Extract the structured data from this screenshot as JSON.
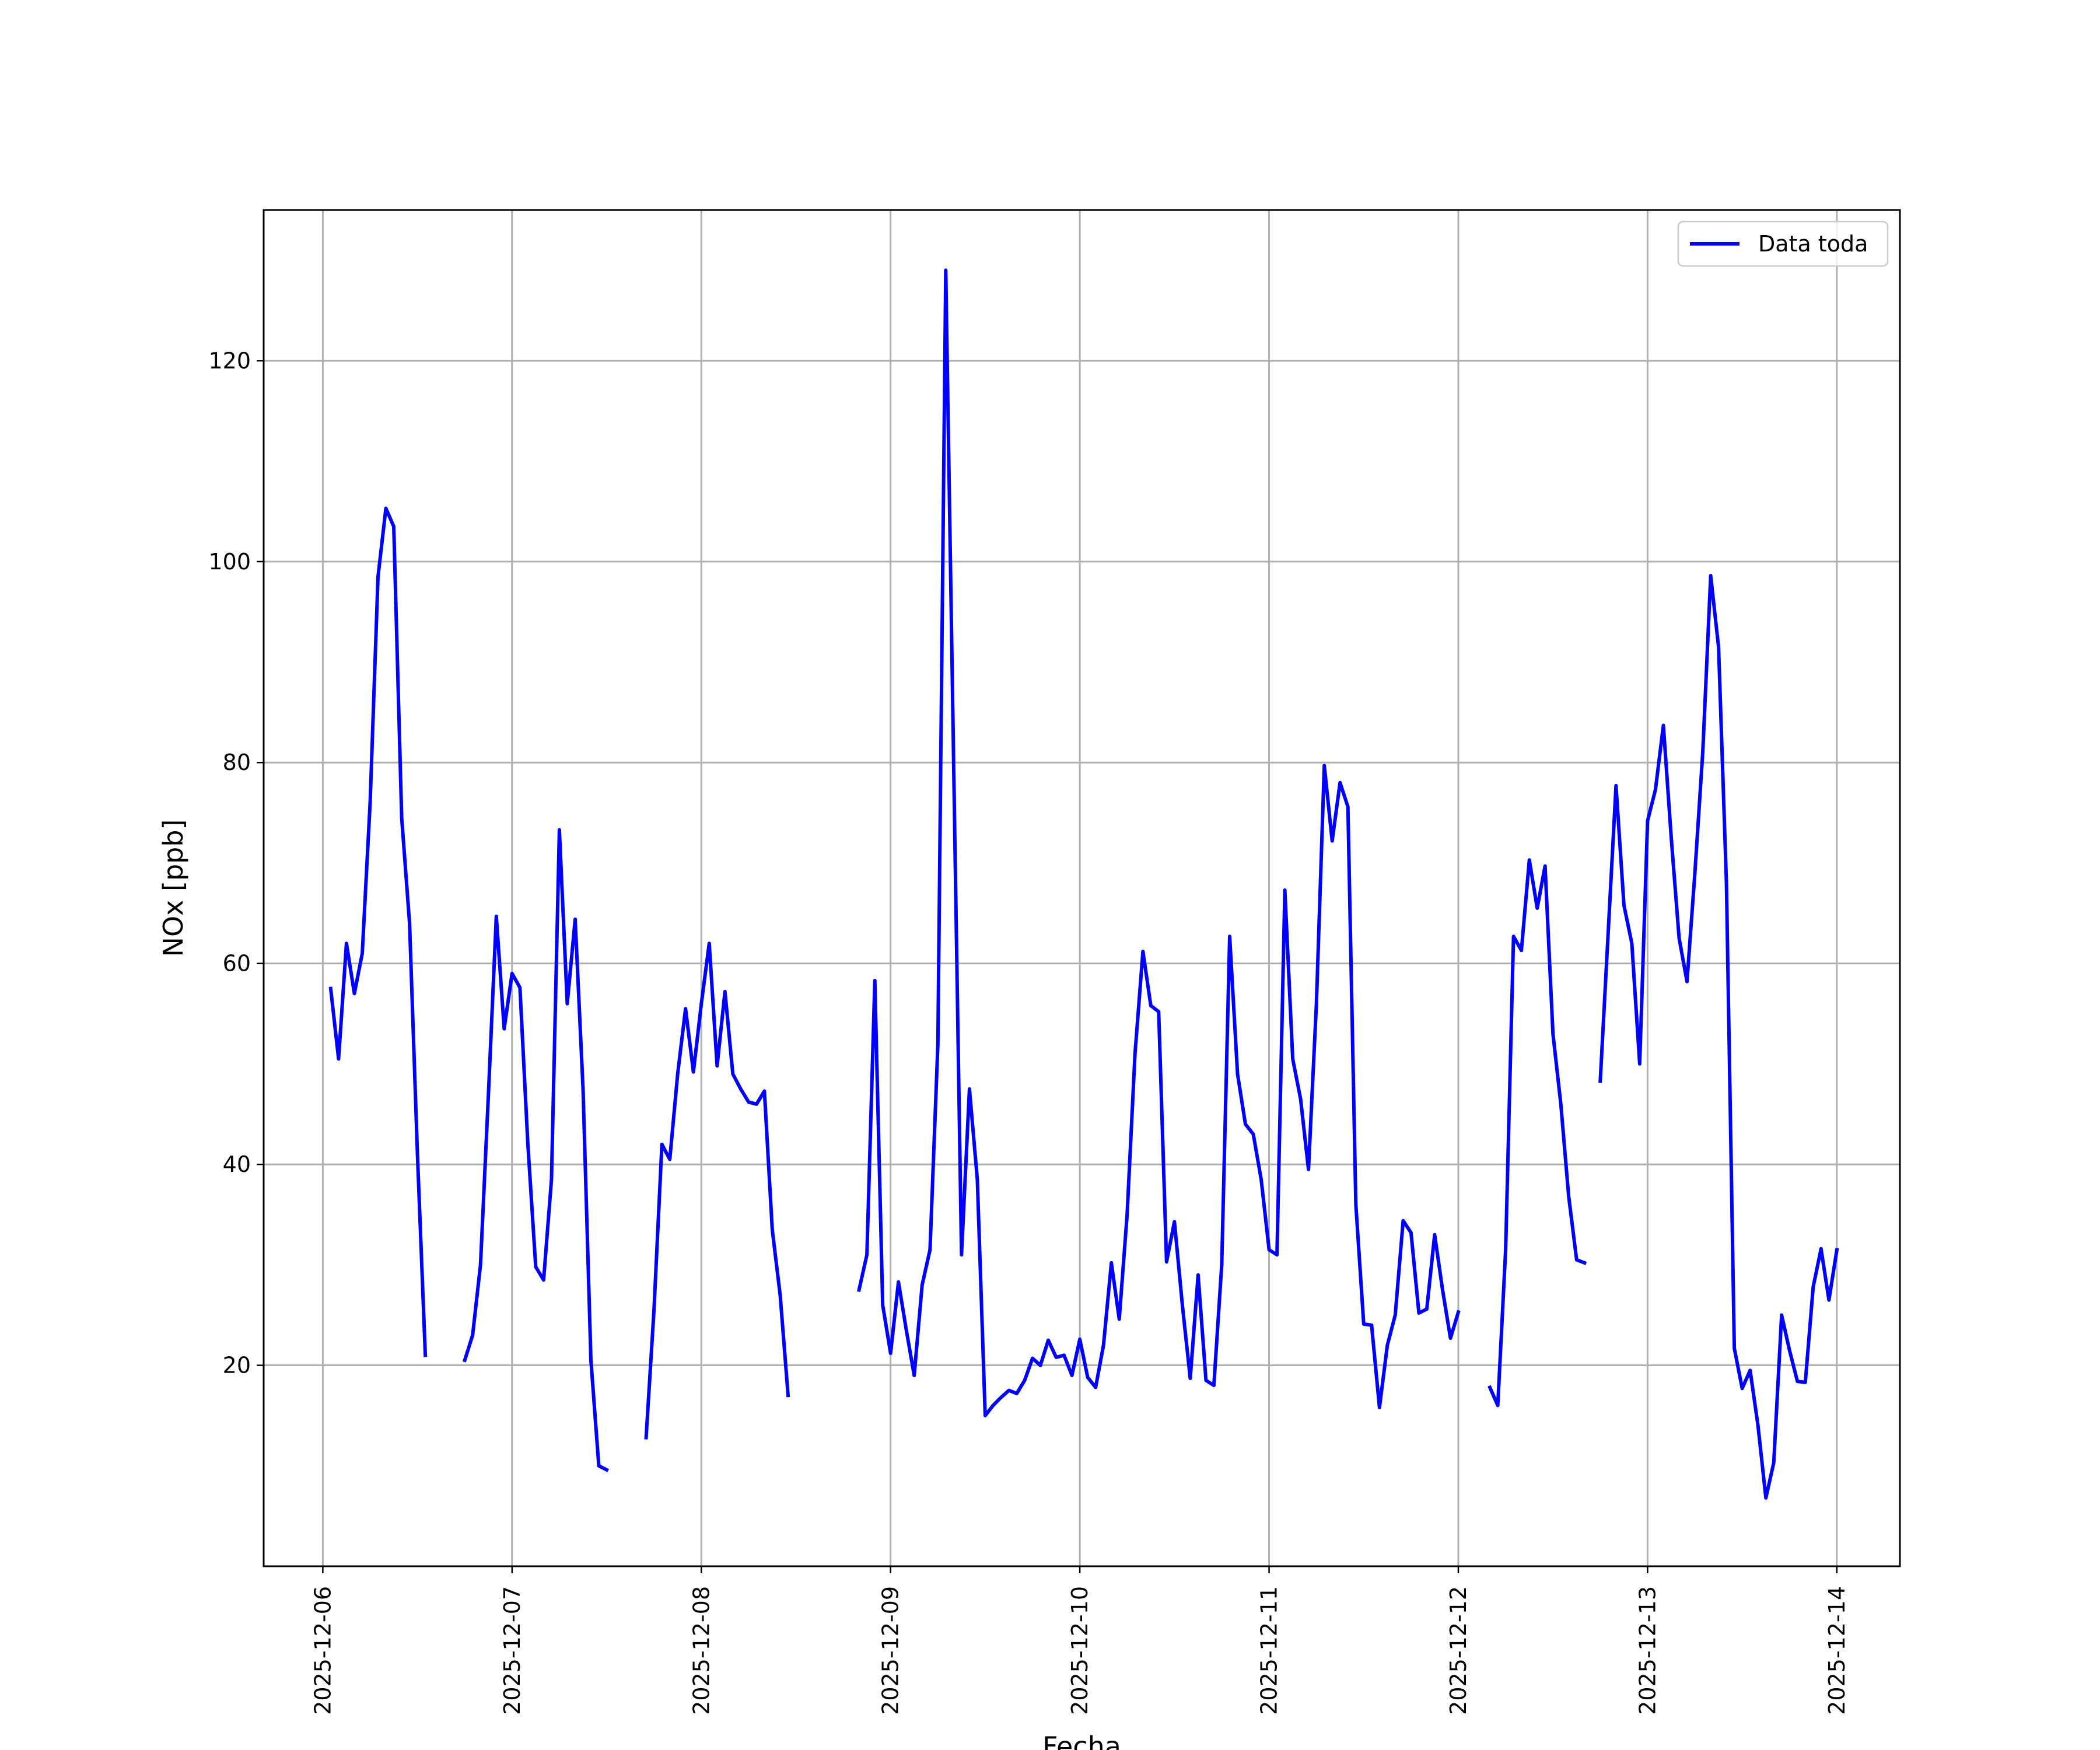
{
  "chart_data": {
    "type": "line",
    "xlabel": "Fecha",
    "ylabel": "NOx [ppb]",
    "grid": true,
    "legend_position": "top-right",
    "x_scale": "datetime",
    "xlim": [
      "2025-12-05 16:30",
      "2025-12-14 08:00"
    ],
    "ylim": [
      0,
      135
    ],
    "x_ticks": [
      "2025-12-06",
      "2025-12-07",
      "2025-12-08",
      "2025-12-09",
      "2025-12-10",
      "2025-12-11",
      "2025-12-12",
      "2025-12-13",
      "2025-12-14"
    ],
    "y_ticks": [
      20,
      40,
      60,
      80,
      100,
      120
    ],
    "colors": {
      "series": "#0000ff",
      "grid": "#b0b0b0",
      "frame": "#000000"
    },
    "series": [
      {
        "name": "Data toda",
        "color": "#0000ff",
        "segments": [
          [
            [
              "2025-12-06 01:00",
              57.5
            ],
            [
              "2025-12-06 02:00",
              50.5
            ],
            [
              "2025-12-06 03:00",
              62
            ],
            [
              "2025-12-06 04:00",
              57
            ],
            [
              "2025-12-06 05:00",
              61
            ],
            [
              "2025-12-06 06:00",
              76
            ],
            [
              "2025-12-06 07:00",
              98.5
            ],
            [
              "2025-12-06 08:00",
              105.3
            ],
            [
              "2025-12-06 09:00",
              103.5
            ],
            [
              "2025-12-06 10:00",
              74.5
            ],
            [
              "2025-12-06 11:00",
              64
            ],
            [
              "2025-12-06 12:00",
              41
            ],
            [
              "2025-12-06 13:00",
              21
            ]
          ],
          [
            [
              "2025-12-06 18:00",
              20.5
            ],
            [
              "2025-12-06 19:00",
              23
            ],
            [
              "2025-12-06 20:00",
              30
            ],
            [
              "2025-12-06 21:00",
              47
            ],
            [
              "2025-12-06 22:00",
              64.7
            ],
            [
              "2025-12-06 23:00",
              53.5
            ],
            [
              "2025-12-07 00:00",
              59
            ],
            [
              "2025-12-07 01:00",
              57.6
            ],
            [
              "2025-12-07 02:00",
              42
            ],
            [
              "2025-12-07 03:00",
              29.8
            ],
            [
              "2025-12-07 04:00",
              28.5
            ],
            [
              "2025-12-07 05:00",
              38.5
            ],
            [
              "2025-12-07 06:00",
              73.3
            ],
            [
              "2025-12-07 07:00",
              56
            ],
            [
              "2025-12-07 08:00",
              64.4
            ],
            [
              "2025-12-07 09:00",
              47.5
            ],
            [
              "2025-12-07 10:00",
              20.5
            ],
            [
              "2025-12-07 11:00",
              10
            ],
            [
              "2025-12-07 12:00",
              9.6
            ]
          ],
          [
            [
              "2025-12-07 17:00",
              12.8
            ],
            [
              "2025-12-07 18:00",
              25.5
            ],
            [
              "2025-12-07 19:00",
              42
            ],
            [
              "2025-12-07 20:00",
              40.5
            ],
            [
              "2025-12-07 21:00",
              49
            ],
            [
              "2025-12-07 22:00",
              55.5
            ],
            [
              "2025-12-07 23:00",
              49.2
            ],
            [
              "2025-12-08 00:00",
              56
            ],
            [
              "2025-12-08 01:00",
              62
            ],
            [
              "2025-12-08 02:00",
              49.8
            ],
            [
              "2025-12-08 03:00",
              57.2
            ],
            [
              "2025-12-08 04:00",
              49
            ],
            [
              "2025-12-08 05:00",
              47.5
            ],
            [
              "2025-12-08 06:00",
              46.2
            ],
            [
              "2025-12-08 07:00",
              46
            ],
            [
              "2025-12-08 08:00",
              47.3
            ],
            [
              "2025-12-08 09:00",
              33.5
            ],
            [
              "2025-12-08 10:00",
              27
            ],
            [
              "2025-12-08 11:00",
              17
            ]
          ],
          [
            [
              "2025-12-08 20:00",
              27.5
            ],
            [
              "2025-12-08 21:00",
              31
            ],
            [
              "2025-12-08 22:00",
              58.3
            ],
            [
              "2025-12-08 23:00",
              26
            ],
            [
              "2025-12-09 00:00",
              21.2
            ],
            [
              "2025-12-09 01:00",
              28.3
            ],
            [
              "2025-12-09 02:00",
              23.5
            ],
            [
              "2025-12-09 03:00",
              19
            ],
            [
              "2025-12-09 04:00",
              28
            ],
            [
              "2025-12-09 05:00",
              31.5
            ],
            [
              "2025-12-09 06:00",
              52
            ],
            [
              "2025-12-09 07:00",
              129
            ],
            [
              "2025-12-09 08:00",
              80
            ],
            [
              "2025-12-09 09:00",
              31
            ],
            [
              "2025-12-09 10:00",
              47.5
            ],
            [
              "2025-12-09 11:00",
              38.5
            ],
            [
              "2025-12-09 12:00",
              15
            ],
            [
              "2025-12-09 13:00",
              16
            ],
            [
              "2025-12-09 14:00",
              16.8
            ],
            [
              "2025-12-09 15:00",
              17.5
            ],
            [
              "2025-12-09 16:00",
              17.2
            ],
            [
              "2025-12-09 17:00",
              18.5
            ],
            [
              "2025-12-09 18:00",
              20.7
            ],
            [
              "2025-12-09 19:00",
              20
            ],
            [
              "2025-12-09 20:00",
              22.5
            ],
            [
              "2025-12-09 21:00",
              20.8
            ],
            [
              "2025-12-09 22:00",
              21
            ],
            [
              "2025-12-09 23:00",
              19
            ],
            [
              "2025-12-10 00:00",
              22.6
            ],
            [
              "2025-12-10 01:00",
              18.8
            ],
            [
              "2025-12-10 02:00",
              17.8
            ],
            [
              "2025-12-10 03:00",
              22
            ],
            [
              "2025-12-10 04:00",
              30.2
            ],
            [
              "2025-12-10 05:00",
              24.6
            ],
            [
              "2025-12-10 06:00",
              35
            ],
            [
              "2025-12-10 07:00",
              51
            ],
            [
              "2025-12-10 08:00",
              61.2
            ],
            [
              "2025-12-10 09:00",
              55.8
            ],
            [
              "2025-12-10 10:00",
              55.2
            ],
            [
              "2025-12-10 11:00",
              30.3
            ],
            [
              "2025-12-10 12:00",
              34.3
            ],
            [
              "2025-12-10 13:00",
              26
            ],
            [
              "2025-12-10 14:00",
              18.7
            ],
            [
              "2025-12-10 15:00",
              29
            ],
            [
              "2025-12-10 16:00",
              18.5
            ],
            [
              "2025-12-10 17:00",
              18
            ],
            [
              "2025-12-10 18:00",
              30
            ],
            [
              "2025-12-10 19:00",
              62.7
            ],
            [
              "2025-12-10 20:00",
              49
            ],
            [
              "2025-12-10 21:00",
              44
            ],
            [
              "2025-12-10 22:00",
              43
            ],
            [
              "2025-12-10 23:00",
              38.5
            ],
            [
              "2025-12-11 00:00",
              31.5
            ],
            [
              "2025-12-11 01:00",
              31
            ],
            [
              "2025-12-11 02:00",
              67.3
            ],
            [
              "2025-12-11 03:00",
              50.5
            ],
            [
              "2025-12-11 04:00",
              46.5
            ],
            [
              "2025-12-11 05:00",
              39.5
            ],
            [
              "2025-12-11 06:00",
              56
            ],
            [
              "2025-12-11 07:00",
              79.7
            ],
            [
              "2025-12-11 08:00",
              72.2
            ],
            [
              "2025-12-11 09:00",
              78
            ],
            [
              "2025-12-11 10:00",
              75.6
            ],
            [
              "2025-12-11 11:00",
              36
            ],
            [
              "2025-12-11 12:00",
              24.1
            ],
            [
              "2025-12-11 13:00",
              24
            ],
            [
              "2025-12-11 14:00",
              15.8
            ],
            [
              "2025-12-11 15:00",
              22
            ],
            [
              "2025-12-11 16:00",
              25
            ],
            [
              "2025-12-11 17:00",
              34.4
            ],
            [
              "2025-12-11 18:00",
              33.2
            ],
            [
              "2025-12-11 19:00",
              25.2
            ],
            [
              "2025-12-11 20:00",
              25.6
            ],
            [
              "2025-12-11 21:00",
              33
            ],
            [
              "2025-12-11 22:00",
              27.5
            ],
            [
              "2025-12-11 23:00",
              22.7
            ],
            [
              "2025-12-12 00:00",
              25.3
            ]
          ],
          [
            [
              "2025-12-12 04:00",
              17.8
            ],
            [
              "2025-12-12 05:00",
              16
            ],
            [
              "2025-12-12 06:00",
              31.5
            ],
            [
              "2025-12-12 07:00",
              62.7
            ],
            [
              "2025-12-12 08:00",
              61.3
            ],
            [
              "2025-12-12 09:00",
              70.3
            ],
            [
              "2025-12-12 10:00",
              65.5
            ],
            [
              "2025-12-12 11:00",
              69.7
            ],
            [
              "2025-12-12 12:00",
              53
            ],
            [
              "2025-12-12 13:00",
              46
            ],
            [
              "2025-12-12 14:00",
              36.8
            ],
            [
              "2025-12-12 15:00",
              30.5
            ],
            [
              "2025-12-12 16:00",
              30.2
            ]
          ],
          [
            [
              "2025-12-12 18:00",
              48.3
            ],
            [
              "2025-12-12 19:00",
              63
            ],
            [
              "2025-12-12 20:00",
              77.7
            ],
            [
              "2025-12-12 21:00",
              65.8
            ],
            [
              "2025-12-12 22:00",
              62
            ],
            [
              "2025-12-12 23:00",
              50
            ],
            [
              "2025-12-13 00:00",
              74.2
            ],
            [
              "2025-12-13 01:00",
              77.3
            ],
            [
              "2025-12-13 02:00",
              83.7
            ],
            [
              "2025-12-13 03:00",
              72.5
            ],
            [
              "2025-12-13 04:00",
              62.5
            ],
            [
              "2025-12-13 05:00",
              58.2
            ],
            [
              "2025-12-13 06:00",
              69
            ],
            [
              "2025-12-13 07:00",
              81
            ],
            [
              "2025-12-13 08:00",
              98.6
            ],
            [
              "2025-12-13 09:00",
              91.5
            ],
            [
              "2025-12-13 10:00",
              68
            ],
            [
              "2025-12-13 11:00",
              21.7
            ],
            [
              "2025-12-13 12:00",
              17.7
            ],
            [
              "2025-12-13 13:00",
              19.5
            ],
            [
              "2025-12-13 14:00",
              14
            ],
            [
              "2025-12-13 15:00",
              6.8
            ],
            [
              "2025-12-13 16:00",
              10.3
            ],
            [
              "2025-12-13 17:00",
              25
            ],
            [
              "2025-12-13 18:00",
              21.5
            ],
            [
              "2025-12-13 19:00",
              18.4
            ],
            [
              "2025-12-13 20:00",
              18.3
            ],
            [
              "2025-12-13 21:00",
              27.8
            ],
            [
              "2025-12-13 22:00",
              31.6
            ],
            [
              "2025-12-13 23:00",
              26.5
            ],
            [
              "2025-12-14 00:00",
              31.5
            ]
          ]
        ]
      }
    ]
  }
}
